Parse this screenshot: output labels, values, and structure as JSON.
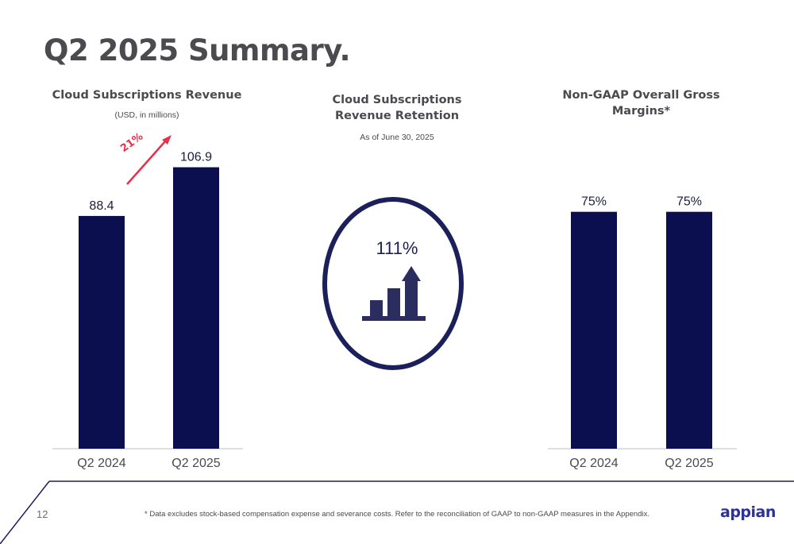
{
  "page_title": "Q2 2025 Summary.",
  "page_number": "12",
  "footnote": "* Data excludes stock-based compensation expense and severance costs. Refer to the reconciliation of GAAP to non-GAAP measures in the Appendix.",
  "logo_text": "appian",
  "colors": {
    "bar": "#0b0f4f",
    "accent": "#e8304a",
    "title": "#4a4a4f",
    "logo": "#2c3299"
  },
  "retention": {
    "title": "Cloud Subscriptions Revenue Retention",
    "subtitle": "As of June 30, 2025",
    "value": "111%",
    "icon": "growth-chart-icon"
  },
  "chart_data": [
    {
      "type": "bar",
      "title": "Cloud Subscriptions Revenue",
      "subtitle": "(USD, in millions)",
      "categories": [
        "Q2 2024",
        "Q2 2025"
      ],
      "values": [
        88.4,
        106.9
      ],
      "labels": [
        "88.4",
        "106.9"
      ],
      "annotation": "21%",
      "ylim": [
        0,
        130
      ]
    },
    {
      "type": "bar",
      "title": "Non-GAAP Overall Gross Margins*",
      "subtitle": "",
      "categories": [
        "Q2 2024",
        "Q2 2025"
      ],
      "values": [
        75,
        75
      ],
      "labels": [
        "75%",
        "75%"
      ],
      "ylim": [
        0,
        88
      ]
    }
  ]
}
